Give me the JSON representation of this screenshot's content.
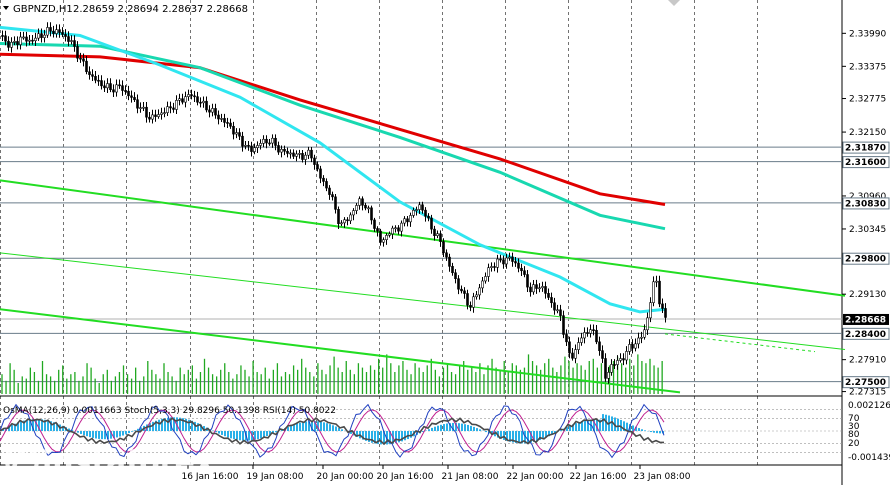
{
  "header": {
    "symbol": "GBPNZD,H1",
    "ohlc": "2.28659 2.28694 2.28637 2.28668"
  },
  "indicator_label": "OsMA(12,26,9) 0.0011663  Stoch(5,3,3) 29.8296 50.1398  RSI(14) 50.8022",
  "watermark": {
    "brand": "instaforex",
    "tagline": "Instant Forex Trading"
  },
  "colors": {
    "bull_candle": "#000000",
    "ema_red": "#e00000",
    "ema_teal": "#18d8b0",
    "ema_cyan": "#30e6f0",
    "channel_green": "#22dd22",
    "volume_green": "#21a821",
    "level_line": "#6a7c8a",
    "osma_bars": "#2ab0e8",
    "stoch_main": "#2040c0",
    "stoch_signal": "#c02090",
    "rsi": "#4a4a4a"
  },
  "chart_data": {
    "type": "candlestick",
    "title": "GBPNZD,H1",
    "ylim": [
      2.2727,
      2.3435
    ],
    "y_ticks": [
      "2.33990",
      "2.33375",
      "2.32775",
      "2.32150",
      "2.30960",
      "2.30345",
      "2.29130",
      "2.27910",
      "2.27315"
    ],
    "x_ticks": [
      "16 Jan 16:00",
      "19 Jan 08:00",
      "20 Jan 00:00",
      "20 Jan 16:00",
      "21 Jan 08:00",
      "22 Jan 00:00",
      "22 Jan 16:00",
      "23 Jan 08:00"
    ],
    "levels": [
      {
        "label": "2.31870",
        "value": 2.3187
      },
      {
        "label": "2.31600",
        "value": 2.316
      },
      {
        "label": "2.30830",
        "value": 2.3083
      },
      {
        "label": "2.29800",
        "value": 2.298
      },
      {
        "label": "2.28400",
        "value": 2.284
      },
      {
        "label": "2.27500",
        "value": 2.275
      }
    ],
    "current_price": {
      "label": "2.28668",
      "value": 2.28668
    },
    "price_path": [
      [
        0,
        2.3395
      ],
      [
        10,
        2.3375
      ],
      [
        20,
        2.339
      ],
      [
        30,
        2.3385
      ],
      [
        40,
        2.3395
      ],
      [
        50,
        2.3405
      ],
      [
        60,
        2.34
      ],
      [
        70,
        2.3385
      ],
      [
        80,
        2.335
      ],
      [
        90,
        2.332
      ],
      [
        100,
        2.3305
      ],
      [
        110,
        2.3295
      ],
      [
        120,
        2.33
      ],
      [
        130,
        2.328
      ],
      [
        140,
        2.326
      ],
      [
        150,
        2.324
      ],
      [
        160,
        2.325
      ],
      [
        170,
        2.326
      ],
      [
        180,
        2.3275
      ],
      [
        190,
        2.3285
      ],
      [
        200,
        2.327
      ],
      [
        210,
        2.3255
      ],
      [
        220,
        2.324
      ],
      [
        230,
        2.3225
      ],
      [
        240,
        2.32
      ],
      [
        250,
        2.318
      ],
      [
        260,
        2.3195
      ],
      [
        270,
        2.32
      ],
      [
        280,
        2.318
      ],
      [
        290,
        2.3175
      ],
      [
        300,
        2.317
      ],
      [
        310,
        2.3175
      ],
      [
        320,
        2.313
      ],
      [
        330,
        2.31
      ],
      [
        340,
        2.304
      ],
      [
        350,
        2.306
      ],
      [
        360,
        2.309
      ],
      [
        370,
        2.306
      ],
      [
        380,
        2.301
      ],
      [
        390,
        2.303
      ],
      [
        400,
        2.304
      ],
      [
        410,
        2.306
      ],
      [
        420,
        2.308
      ],
      [
        430,
        2.304
      ],
      [
        440,
        2.301
      ],
      [
        450,
        2.296
      ],
      [
        460,
        2.292
      ],
      [
        470,
        2.289
      ],
      [
        480,
        2.293
      ],
      [
        490,
        2.2965
      ],
      [
        500,
        2.2975
      ],
      [
        510,
        2.298
      ],
      [
        520,
        2.296
      ],
      [
        530,
        2.292
      ],
      [
        540,
        2.293
      ],
      [
        550,
        2.29
      ],
      [
        560,
        2.287
      ],
      [
        570,
        2.279
      ],
      [
        580,
        2.283
      ],
      [
        590,
        2.285
      ],
      [
        600,
        2.281
      ],
      [
        605,
        2.2755
      ],
      [
        610,
        2.278
      ],
      [
        620,
        2.279
      ],
      [
        630,
        2.2815
      ],
      [
        640,
        2.283
      ],
      [
        645,
        2.285
      ],
      [
        650,
        2.29
      ],
      [
        655,
        2.295
      ],
      [
        660,
        2.289
      ],
      [
        665,
        2.28668
      ]
    ],
    "ema_red": [
      [
        0,
        2.336
      ],
      [
        100,
        2.3355
      ],
      [
        200,
        2.3335
      ],
      [
        300,
        2.3275
      ],
      [
        400,
        2.322
      ],
      [
        500,
        2.3165
      ],
      [
        600,
        2.31
      ],
      [
        665,
        2.308
      ]
    ],
    "ema_teal": [
      [
        0,
        2.338
      ],
      [
        100,
        2.3375
      ],
      [
        200,
        2.3335
      ],
      [
        300,
        2.3265
      ],
      [
        400,
        2.3205
      ],
      [
        500,
        2.314
      ],
      [
        600,
        2.306
      ],
      [
        665,
        2.3035
      ]
    ],
    "ema_cyan": [
      [
        0,
        2.341
      ],
      [
        80,
        2.3395
      ],
      [
        160,
        2.334
      ],
      [
        240,
        2.328
      ],
      [
        320,
        2.3195
      ],
      [
        400,
        2.3085
      ],
      [
        480,
        2.3005
      ],
      [
        560,
        2.2945
      ],
      [
        610,
        2.2895
      ],
      [
        640,
        2.288
      ],
      [
        665,
        2.2885
      ]
    ],
    "channel_lines": [
      {
        "name": "upper",
        "points": [
          [
            0,
            2.3125
          ],
          [
            845,
            2.291
          ]
        ]
      },
      {
        "name": "middle",
        "points": [
          [
            0,
            2.299
          ],
          [
            845,
            2.281
          ]
        ],
        "thin": true
      },
      {
        "name": "lower",
        "points": [
          [
            0,
            2.2885
          ],
          [
            680,
            2.273
          ]
        ]
      }
    ],
    "volume": [
      9,
      6,
      14,
      11,
      5,
      8,
      7,
      12,
      10,
      6,
      15,
      9,
      8,
      6,
      11,
      13,
      7,
      9,
      10,
      6,
      8,
      14,
      12,
      7,
      5,
      9,
      11,
      6,
      8,
      10,
      13,
      9,
      7,
      12,
      6,
      8,
      15,
      11,
      9,
      7,
      14,
      10,
      8,
      6,
      12,
      9,
      11,
      13,
      7,
      10,
      16,
      12,
      9,
      8,
      11,
      14,
      10,
      7,
      9,
      13,
      11,
      8,
      15,
      10,
      9,
      12,
      7,
      11,
      14,
      8,
      10,
      9,
      13,
      11,
      16,
      12,
      10,
      8,
      14,
      11,
      9,
      13,
      17,
      12,
      10,
      15,
      11,
      9,
      14,
      12,
      10,
      13,
      11,
      16,
      12,
      18,
      14,
      10,
      13,
      15,
      11,
      9,
      14,
      12,
      10,
      13,
      16,
      11,
      8,
      12,
      14,
      10,
      9,
      13,
      15,
      11,
      12,
      10,
      14,
      9,
      13,
      16,
      12,
      11,
      15,
      10,
      14,
      13,
      11,
      12,
      18,
      15,
      13,
      11,
      14,
      16,
      12,
      10,
      13,
      17,
      15,
      12,
      14,
      13,
      11,
      15,
      16,
      12,
      14,
      10,
      13,
      15,
      17,
      14,
      12,
      16,
      13,
      18,
      15,
      14,
      16,
      13,
      12,
      15
    ],
    "indicators": {
      "osma": 0.0011663,
      "stoch_main": 29.8296,
      "stoch_signal": 50.1398,
      "rsi": 50.8022,
      "scale_labels": [
        "0.0021265",
        "70",
        "30",
        "80",
        "20",
        "-0.001439"
      ]
    }
  }
}
